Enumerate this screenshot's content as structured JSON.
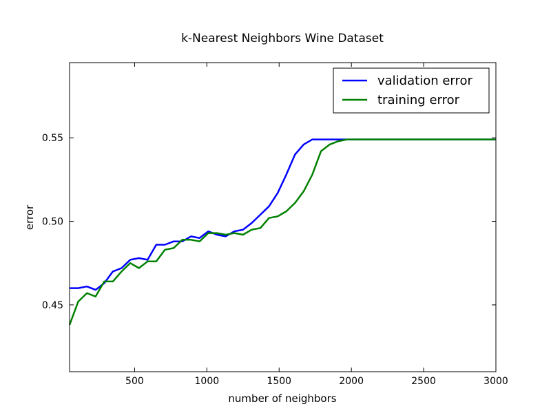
{
  "chart_data": {
    "type": "line",
    "title": "k-Nearest Neighbors Wine Dataset",
    "xlabel": "number of neighbors",
    "ylabel": "error",
    "xlim": [
      50,
      3000
    ],
    "ylim": [
      0.41,
      0.595
    ],
    "x_ticks": [
      500,
      1000,
      1500,
      2000,
      2500,
      3000
    ],
    "x_tick_labels": [
      "500",
      "1000",
      "1500",
      "2000",
      "2500",
      "3000"
    ],
    "y_ticks": [
      0.45,
      0.5,
      0.55
    ],
    "y_tick_labels": [
      "0.45",
      "0.50",
      "0.55"
    ],
    "grid": false,
    "legend_position": "top-right",
    "series": [
      {
        "name": "validation error",
        "color": "#0000ff",
        "x": [
          50,
          110,
          170,
          230,
          290,
          350,
          410,
          470,
          530,
          590,
          650,
          710,
          770,
          830,
          890,
          950,
          1010,
          1070,
          1130,
          1190,
          1250,
          1310,
          1370,
          1430,
          1490,
          1550,
          1610,
          1670,
          1730,
          1790,
          1850,
          1910,
          1970,
          2100,
          2300,
          2500,
          2700,
          2900,
          3000
        ],
        "y": [
          0.46,
          0.46,
          0.461,
          0.459,
          0.463,
          0.47,
          0.472,
          0.477,
          0.478,
          0.477,
          0.486,
          0.486,
          0.488,
          0.488,
          0.491,
          0.49,
          0.494,
          0.492,
          0.491,
          0.494,
          0.495,
          0.499,
          0.504,
          0.509,
          0.517,
          0.528,
          0.54,
          0.546,
          0.549,
          0.549,
          0.549,
          0.549,
          0.549,
          0.549,
          0.549,
          0.549,
          0.549,
          0.549,
          0.549
        ]
      },
      {
        "name": "training error",
        "color": "#008000",
        "x": [
          50,
          110,
          170,
          230,
          290,
          350,
          410,
          470,
          530,
          590,
          650,
          710,
          770,
          830,
          890,
          950,
          1010,
          1070,
          1130,
          1190,
          1250,
          1310,
          1370,
          1430,
          1490,
          1550,
          1610,
          1670,
          1730,
          1790,
          1850,
          1910,
          1970,
          2100,
          2300,
          2500,
          2700,
          2900,
          3000
        ],
        "y": [
          0.438,
          0.452,
          0.457,
          0.455,
          0.464,
          0.464,
          0.47,
          0.475,
          0.472,
          0.476,
          0.476,
          0.483,
          0.484,
          0.489,
          0.489,
          0.488,
          0.493,
          0.493,
          0.492,
          0.493,
          0.492,
          0.495,
          0.496,
          0.502,
          0.503,
          0.506,
          0.511,
          0.518,
          0.528,
          0.542,
          0.546,
          0.548,
          0.549,
          0.549,
          0.549,
          0.549,
          0.549,
          0.549,
          0.549
        ]
      }
    ]
  }
}
